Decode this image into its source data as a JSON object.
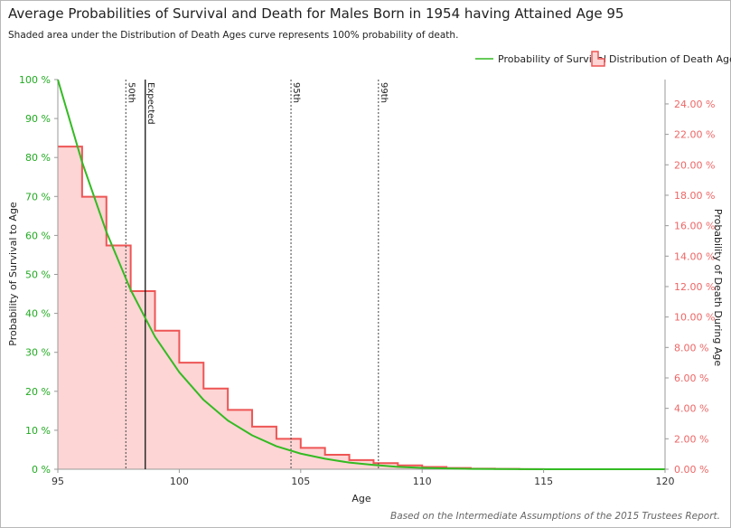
{
  "title": "Average Probabilities of Survival and Death for Males Born in 1954 having Attained Age 95",
  "subtitle": "Shaded area under the Distribution of Death Ages curve represents 100% probability of death.",
  "footer": "Based on the Intermediate Assumptions of the 2015 Trustees Report.",
  "colors": {
    "survival": "#33bb22",
    "death_line": "#ee5555",
    "death_fill": "#fdd5d5",
    "left_axis": "#22aa22",
    "right_axis": "#ee6666"
  },
  "chart_data": {
    "type": "line",
    "xlabel": "Age",
    "ylabel_left": "Probability of Survival to Age",
    "ylabel_right": "Probability of Death During Age",
    "xlim": [
      95,
      120
    ],
    "ylim_left": [
      0,
      100
    ],
    "ylim_right": [
      0,
      25.6
    ],
    "x_ticks": [
      "95",
      "100",
      "105",
      "110",
      "115",
      "120"
    ],
    "y_left_ticks": [
      "0 %",
      "10 %",
      "20 %",
      "30 %",
      "40 %",
      "50 %",
      "60 %",
      "70 %",
      "80 %",
      "90 %",
      "100 %"
    ],
    "y_right_ticks": [
      "0.00 %",
      "2.00 %",
      "4.00 %",
      "6.00 %",
      "8.00 %",
      "10.00 %",
      "12.00 %",
      "14.00 %",
      "16.00 %",
      "18.00 %",
      "20.00 %",
      "22.00 %",
      "24.00 %"
    ],
    "legend": {
      "position": "top-right",
      "items": [
        "Probability of Survival",
        "Distribution of Death Ages"
      ]
    },
    "series": [
      {
        "name": "Probability of Survival",
        "x": [
          95,
          96,
          97,
          98,
          99,
          100,
          101,
          102,
          103,
          104,
          105,
          106,
          107,
          108,
          109,
          110,
          111,
          112,
          113,
          114,
          115,
          116,
          117,
          118,
          119,
          120
        ],
        "values": [
          100,
          78.8,
          60.9,
          46.0,
          34.0,
          24.9,
          17.8,
          12.5,
          8.7,
          5.9,
          4.0,
          2.7,
          1.7,
          1.1,
          0.6,
          0.35,
          0.2,
          0.1,
          0.05,
          0.02,
          0.01,
          0,
          0,
          0,
          0,
          0
        ]
      },
      {
        "name": "Distribution of Death Ages",
        "x": [
          95,
          96,
          97,
          98,
          99,
          100,
          101,
          102,
          103,
          104,
          105,
          106,
          107,
          108,
          109,
          110,
          111,
          112,
          113,
          114,
          115,
          116,
          117,
          118,
          119
        ],
        "values": [
          21.2,
          17.9,
          14.7,
          11.7,
          9.1,
          7.0,
          5.3,
          3.9,
          2.8,
          2.0,
          1.4,
          0.95,
          0.6,
          0.4,
          0.25,
          0.15,
          0.08,
          0.04,
          0.02,
          0.01,
          0,
          0,
          0,
          0,
          0
        ]
      }
    ],
    "markers": [
      {
        "label": "50th",
        "x": 97.8,
        "style": "dotted"
      },
      {
        "label": "Expected",
        "x": 98.6,
        "style": "solid"
      },
      {
        "label": "95th",
        "x": 104.6,
        "style": "dotted"
      },
      {
        "label": "99th",
        "x": 108.2,
        "style": "dotted"
      }
    ]
  }
}
